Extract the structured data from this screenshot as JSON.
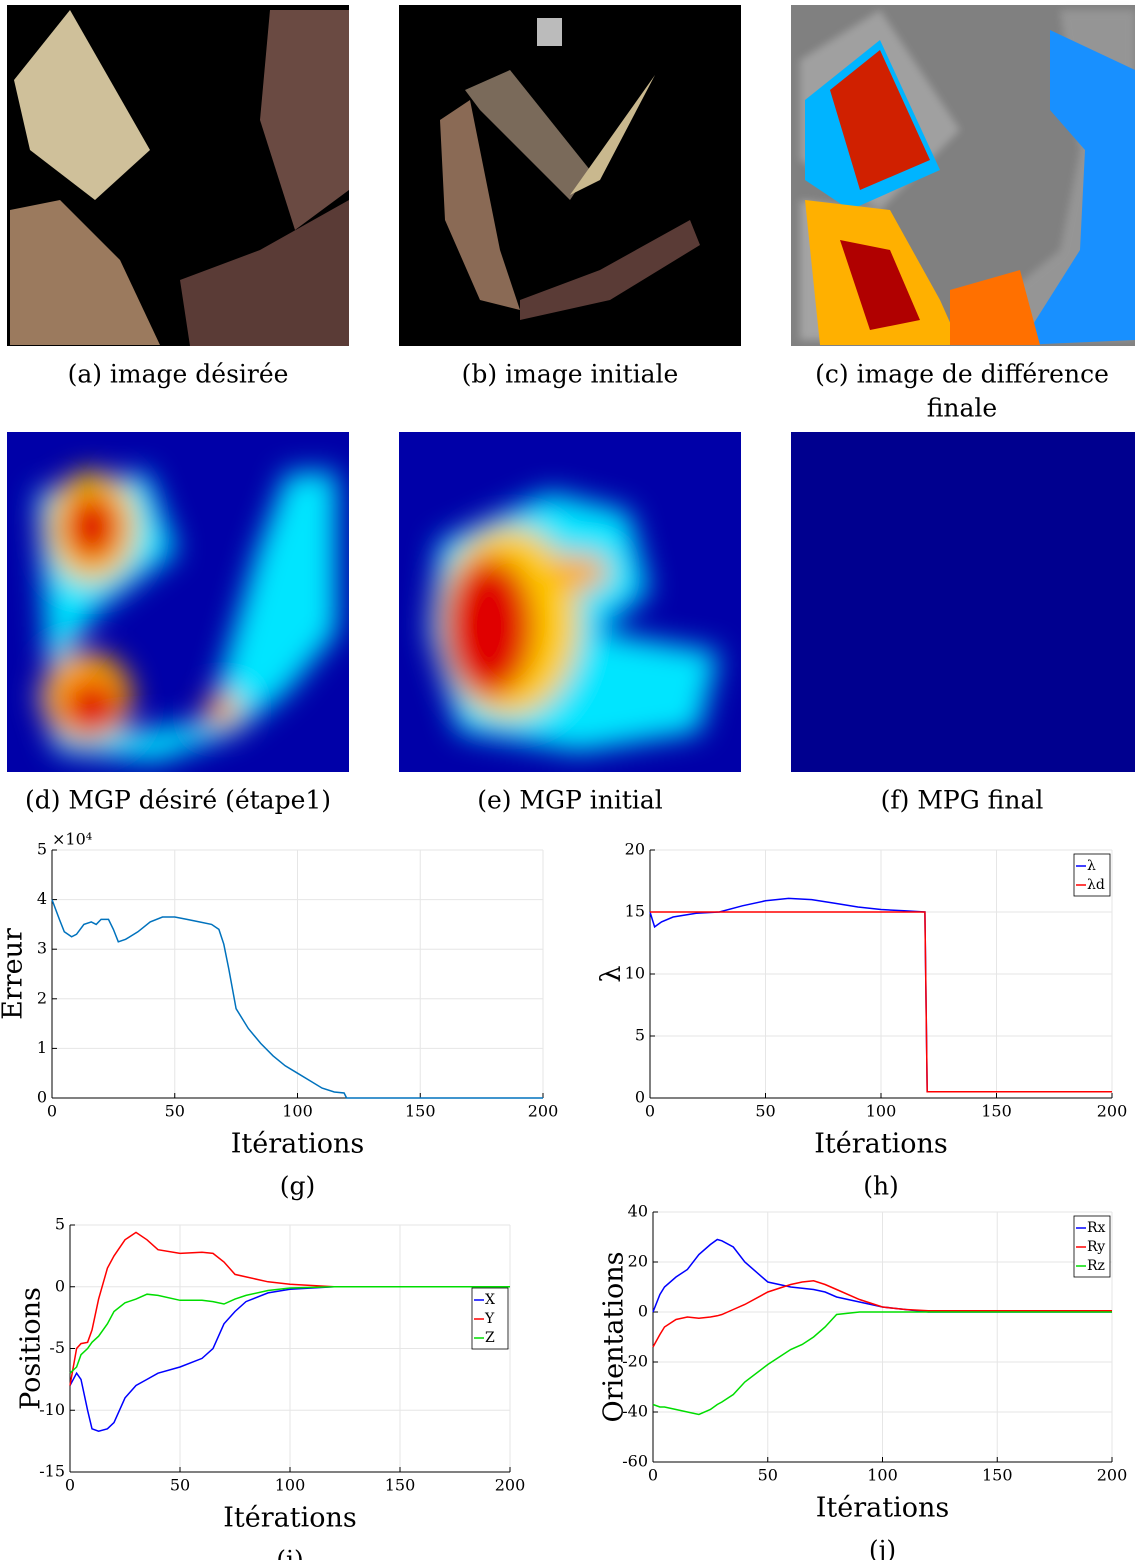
{
  "figure": {
    "images": [
      {
        "caption": [
          "(a) image désirée"
        ]
      },
      {
        "caption": [
          "(b) image initiale"
        ]
      },
      {
        "caption": [
          "(c) image de différence",
          "finale"
        ]
      },
      {
        "caption": [
          "(d) MGP désiré (étape1)"
        ]
      },
      {
        "caption": [
          "(e) MGP initial"
        ]
      },
      {
        "caption": [
          "(f) MPG final"
        ]
      }
    ]
  },
  "chart_data": [
    {
      "type": "line",
      "subcaption": "(g)",
      "xlabel": "Itérations",
      "ylabel": "Erreur",
      "y_exponent": "×10⁴",
      "x": [
        0,
        3,
        5,
        8,
        10,
        13,
        16,
        18,
        20,
        23,
        25,
        27,
        30,
        35,
        40,
        45,
        50,
        55,
        60,
        65,
        68,
        70,
        72,
        75,
        80,
        85,
        90,
        95,
        100,
        105,
        110,
        115,
        119,
        120,
        150,
        200
      ],
      "series": [
        {
          "name": "Erreur",
          "color": "#0072bd",
          "values": [
            40000,
            36000,
            33500,
            32500,
            33000,
            35000,
            35500,
            35000,
            36000,
            36000,
            34000,
            31500,
            32000,
            33500,
            35500,
            36500,
            36500,
            36000,
            35500,
            35000,
            34000,
            31000,
            26000,
            18000,
            14000,
            11000,
            8500,
            6500,
            5000,
            3500,
            2000,
            1200,
            1000,
            0,
            0,
            0
          ]
        }
      ],
      "xlim": [
        0,
        200
      ],
      "xticks": [
        0,
        50,
        100,
        150,
        200
      ],
      "ylim": [
        0,
        50000
      ],
      "yticks": [
        {
          "value": 0,
          "label": "0"
        },
        {
          "value": 10000,
          "label": "1"
        },
        {
          "value": 20000,
          "label": "2"
        },
        {
          "value": 30000,
          "label": "3"
        },
        {
          "value": 40000,
          "label": "4"
        },
        {
          "value": 50000,
          "label": "5"
        }
      ],
      "grid": true
    },
    {
      "type": "line",
      "subcaption": "(h)",
      "xlabel": "Itérations",
      "ylabel": "λ",
      "x": [
        0,
        2,
        5,
        10,
        20,
        30,
        40,
        50,
        60,
        70,
        80,
        90,
        100,
        110,
        119,
        120,
        200
      ],
      "series": [
        {
          "name": "λ",
          "color": "#0000ff",
          "values": [
            15,
            13.8,
            14.2,
            14.6,
            14.9,
            15,
            15.5,
            15.9,
            16.1,
            16,
            15.7,
            15.4,
            15.2,
            15.1,
            15,
            0.5,
            0.5
          ]
        },
        {
          "name": "λd",
          "color": "#ff0000",
          "values": [
            15,
            15,
            15,
            15,
            15,
            15,
            15,
            15,
            15,
            15,
            15,
            15,
            15,
            15,
            15,
            0.5,
            0.5
          ]
        }
      ],
      "xlim": [
        0,
        200
      ],
      "xticks": [
        0,
        50,
        100,
        150,
        200
      ],
      "ylim": [
        0,
        20
      ],
      "yticks": [
        0,
        5,
        10,
        15,
        20
      ],
      "grid": true,
      "legend": "northeast"
    },
    {
      "type": "line",
      "subcaption": "(i)",
      "xlabel": "Itérations",
      "ylabel": "Positions",
      "x": [
        0,
        3,
        5,
        8,
        10,
        13,
        17,
        20,
        25,
        30,
        35,
        40,
        50,
        60,
        65,
        70,
        75,
        80,
        90,
        100,
        120,
        150,
        200
      ],
      "series": [
        {
          "name": "X",
          "color": "#0000ff",
          "values": [
            -8,
            -7,
            -7.5,
            -10,
            -11.5,
            -11.7,
            -11.5,
            -11,
            -9,
            -8,
            -7.5,
            -7,
            -6.5,
            -5.8,
            -5,
            -3,
            -2,
            -1.2,
            -0.5,
            -0.2,
            0,
            0,
            0
          ]
        },
        {
          "name": "Y",
          "color": "#ff0000",
          "values": [
            -8,
            -5,
            -4.6,
            -4.5,
            -3.5,
            -1,
            1.5,
            2.5,
            3.8,
            4.4,
            3.8,
            3,
            2.7,
            2.8,
            2.7,
            2,
            1,
            0.8,
            0.4,
            0.2,
            0,
            0,
            0
          ]
        },
        {
          "name": "Z",
          "color": "#00dd00",
          "values": [
            -7,
            -6.5,
            -5.5,
            -5,
            -4.5,
            -4,
            -3,
            -2,
            -1.3,
            -1,
            -0.6,
            -0.7,
            -1.1,
            -1.1,
            -1.2,
            -1.4,
            -1,
            -0.7,
            -0.3,
            -0.1,
            0,
            0,
            0
          ]
        }
      ],
      "xlim": [
        0,
        200
      ],
      "xticks": [
        0,
        50,
        100,
        150,
        200
      ],
      "ylim": [
        -15,
        5
      ],
      "yticks": [
        -15,
        -10,
        -5,
        0,
        5
      ],
      "grid": true,
      "legend": "east"
    },
    {
      "type": "line",
      "subcaption": "(j)",
      "xlabel": "Itérations",
      "ylabel": "Orientations",
      "x": [
        0,
        3,
        5,
        10,
        15,
        20,
        25,
        28,
        30,
        35,
        40,
        50,
        60,
        65,
        70,
        75,
        80,
        90,
        100,
        110,
        120,
        150,
        200
      ],
      "series": [
        {
          "name": "Rx",
          "color": "#0000ff",
          "values": [
            0,
            7,
            10,
            14,
            17,
            23,
            27,
            29,
            28.5,
            26,
            20,
            12,
            10,
            9.5,
            9,
            8,
            6,
            4,
            2,
            1,
            0,
            0,
            0
          ]
        },
        {
          "name": "Ry",
          "color": "#ff0000",
          "values": [
            -14,
            -9,
            -6,
            -3,
            -2,
            -2.5,
            -2,
            -1.5,
            -1,
            1,
            3,
            8,
            11,
            12,
            12.5,
            11,
            9,
            5,
            2,
            1,
            0.5,
            0.5,
            0.5
          ]
        },
        {
          "name": "Rz",
          "color": "#00dd00",
          "values": [
            -37,
            -38,
            -38,
            -39,
            -40,
            -41,
            -39,
            -37,
            -36,
            -33,
            -28,
            -21,
            -15,
            -13,
            -10,
            -6,
            -1,
            0,
            0,
            0,
            0,
            0,
            0
          ]
        }
      ],
      "xlim": [
        0,
        200
      ],
      "xticks": [
        0,
        50,
        100,
        150,
        200
      ],
      "ylim": [
        -60,
        40
      ],
      "yticks": [
        -60,
        -40,
        -20,
        0,
        20,
        40
      ],
      "grid": true,
      "legend": "northeast"
    }
  ]
}
